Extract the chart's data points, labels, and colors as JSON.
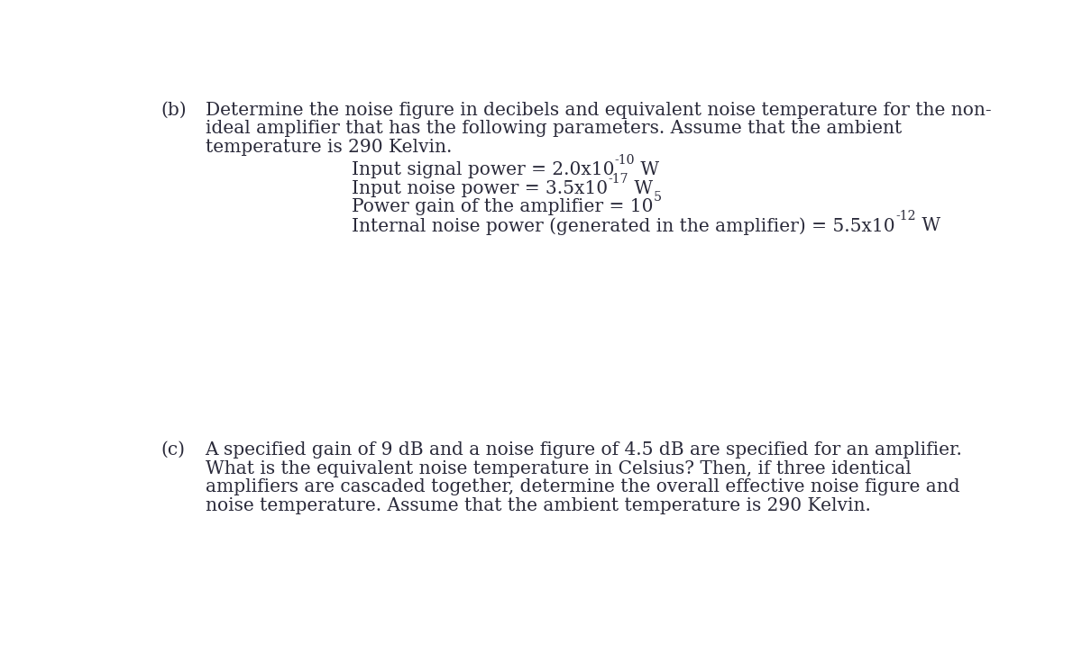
{
  "background_color": "#ffffff",
  "text_color": "#2a2a3a",
  "fig_width": 12.0,
  "fig_height": 7.46,
  "dpi": 100,
  "label_b": "(b)",
  "label_c": "(c)",
  "part_b_line1": "Determine the noise figure in decibels and equivalent noise temperature for the non-",
  "part_b_line2": "ideal amplifier that has the following parameters. Assume that the ambient",
  "part_b_line3": "temperature is 290 Kelvin.",
  "part_b_bullet1_a": "Input signal power = 2.0x10",
  "part_b_bullet1_sup": "-10",
  "part_b_bullet1_b": " W",
  "part_b_bullet2_a": "Input noise power = 3.5x10",
  "part_b_bullet2_sup": "-17",
  "part_b_bullet2_b": " W",
  "part_b_bullet3_a": "Power gain of the amplifier = 10",
  "part_b_bullet3_sup": "5",
  "part_b_bullet4_a": "Internal noise power (generated in the amplifier) = 5.5x10",
  "part_b_bullet4_sup": "-12",
  "part_b_bullet4_b": " W",
  "part_c_line1": "A specified gain of 9 dB and a noise figure of 4.5 dB are specified for an amplifier.",
  "part_c_line2": "What is the equivalent noise temperature in Celsius? Then, if three identical",
  "part_c_line3": "amplifiers are cascaded together, determine the overall effective noise figure and",
  "part_c_line4": "noise temperature. Assume that the ambient temperature is 290 Kelvin.",
  "font_size_main": 14.5,
  "font_family": "DejaVu Serif"
}
